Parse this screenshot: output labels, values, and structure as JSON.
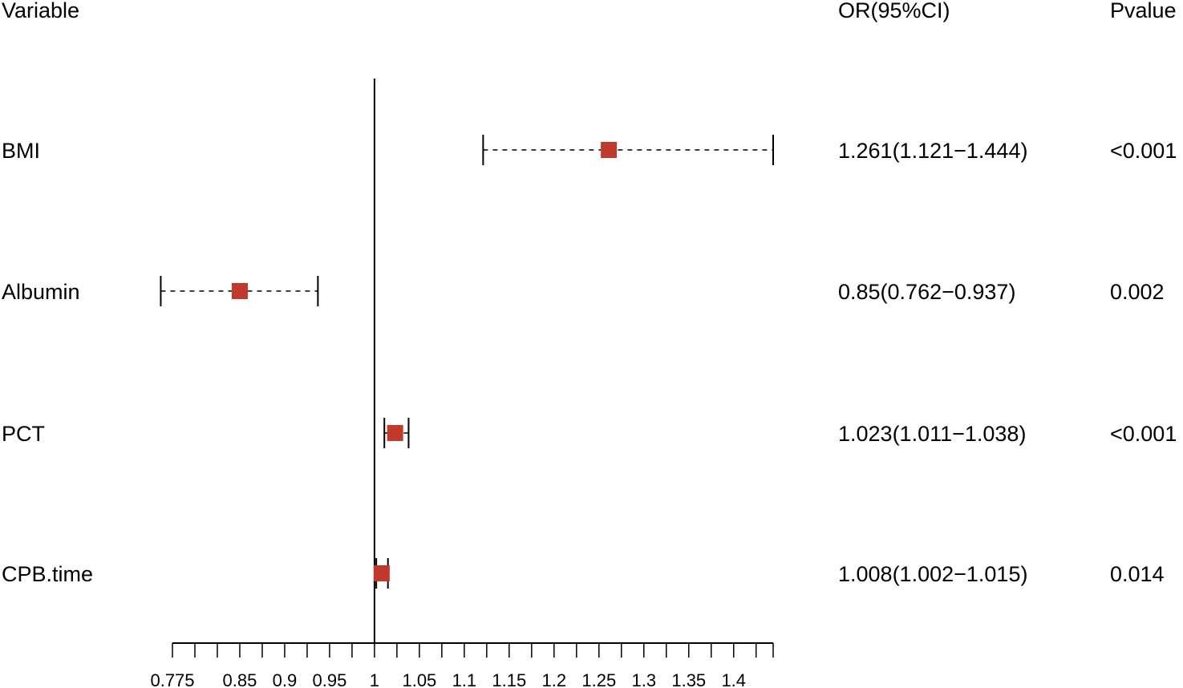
{
  "chart_data": {
    "type": "forest",
    "headers": {
      "variable": "Variable",
      "or_ci": "OR(95%CI)",
      "pvalue": "Pvalue"
    },
    "rows": [
      {
        "variable": "BMI",
        "or": 1.261,
        "lower": 1.121,
        "upper": 1.444,
        "or_ci_text": "1.261(1.121−1.444)",
        "pvalue": "<0.001"
      },
      {
        "variable": "Albumin",
        "or": 0.85,
        "lower": 0.762,
        "upper": 0.937,
        "or_ci_text": "0.85(0.762−0.937)",
        "pvalue": "0.002"
      },
      {
        "variable": "PCT",
        "or": 1.023,
        "lower": 1.011,
        "upper": 1.038,
        "or_ci_text": "1.023(1.011−1.038)",
        "pvalue": "<0.001"
      },
      {
        "variable": "CPB.time",
        "or": 1.008,
        "lower": 1.002,
        "upper": 1.015,
        "or_ci_text": "1.008(1.002−1.015)",
        "pvalue": "0.014"
      }
    ],
    "x_ticks": [
      0.775,
      0.85,
      0.9,
      0.95,
      1,
      1.05,
      1.1,
      1.15,
      1.2,
      1.25,
      1.3,
      1.35,
      1.4
    ],
    "x_tick_labels": [
      "0.775",
      "0.85",
      "0.9",
      "0.95",
      "1",
      "1.05",
      "1.1",
      "1.15",
      "1.2",
      "1.25",
      "1.3",
      "1.35",
      "1.4"
    ],
    "reference_value": 1,
    "xlim": [
      0.775,
      1.444
    ],
    "grid": false,
    "marker_color": "#c0392b"
  }
}
